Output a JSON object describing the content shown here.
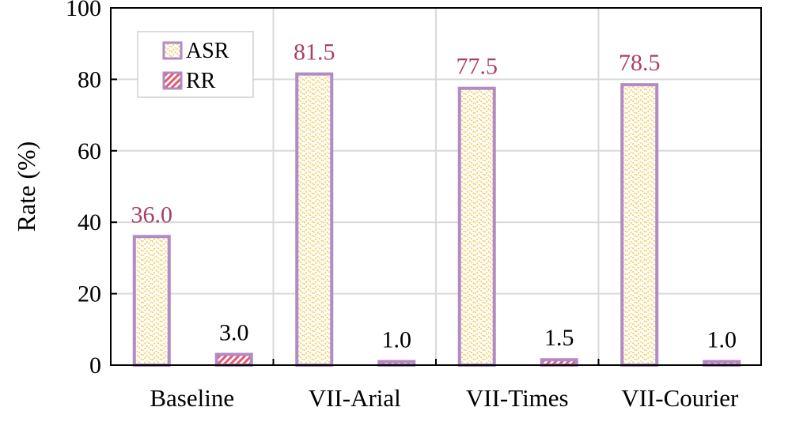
{
  "chart_data": {
    "type": "bar",
    "categories": [
      "Baseline",
      "VII-Arial",
      "VII-Times",
      "VII-Courier"
    ],
    "series": [
      {
        "name": "ASR",
        "values": [
          36.0,
          81.5,
          77.5,
          78.5
        ],
        "labels": [
          "36.0",
          "81.5",
          "77.5",
          "78.5"
        ],
        "label_color": "#a8406a"
      },
      {
        "name": "RR",
        "values": [
          3.0,
          1.0,
          1.5,
          1.0
        ],
        "labels": [
          "3.0",
          "1.0",
          "1.5",
          "1.0"
        ],
        "label_color": "#000000"
      }
    ],
    "title": "",
    "xlabel": "",
    "ylabel": "Rate (%)",
    "ylim": [
      0,
      100
    ],
    "yticks": [
      "0",
      "20",
      "40",
      "60",
      "80",
      "100"
    ],
    "grid": true,
    "legend_position": "top-left",
    "colors": {
      "bar_border": "#b18ac6",
      "asr_fill": "#f6d777",
      "rr_fill": "#e45a6c",
      "grid": "#d9d9d9"
    }
  }
}
